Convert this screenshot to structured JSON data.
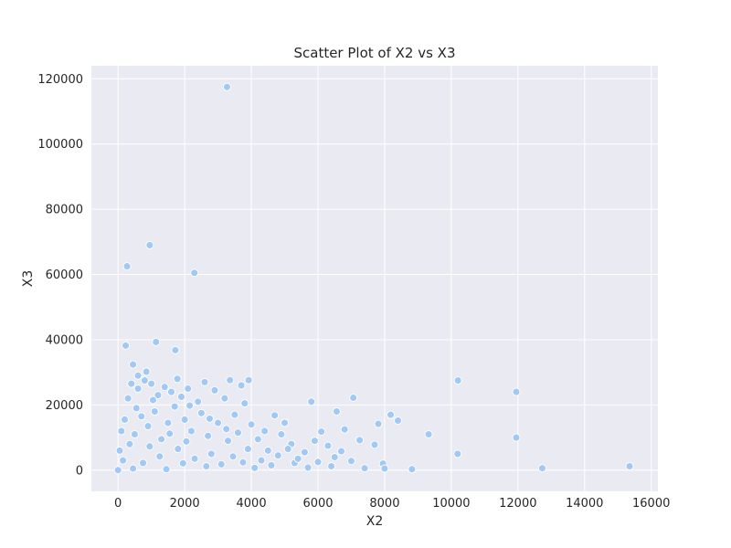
{
  "chart_data": {
    "type": "scatter",
    "title": "Scatter Plot of X2 vs X3",
    "xlabel": "X2",
    "ylabel": "X3",
    "xlim": [
      -800,
      16200
    ],
    "ylim": [
      -6500,
      124000
    ],
    "xticks": [
      0,
      2000,
      4000,
      6000,
      8000,
      10000,
      12000,
      14000,
      16000
    ],
    "yticks": [
      0,
      20000,
      40000,
      60000,
      80000,
      100000,
      120000
    ],
    "grid": true,
    "background_color": "#eaeaf2",
    "marker_color": "#a1c9f4",
    "points": [
      [
        3270,
        117500
      ],
      [
        950,
        69000
      ],
      [
        270,
        62500
      ],
      [
        2290,
        60500
      ],
      [
        1140,
        39300
      ],
      [
        230,
        38200
      ],
      [
        1720,
        36800
      ],
      [
        450,
        32400
      ],
      [
        850,
        30200
      ],
      [
        600,
        29000
      ],
      [
        1780,
        28000
      ],
      [
        3360,
        27600
      ],
      [
        3920,
        27600
      ],
      [
        10200,
        27500
      ],
      [
        3700,
        26000
      ],
      [
        7060,
        22200
      ],
      [
        11950,
        24000
      ],
      [
        5800,
        21000
      ],
      [
        6560,
        18000
      ],
      [
        8180,
        17000
      ],
      [
        8400,
        15200
      ],
      [
        7810,
        14200
      ],
      [
        9320,
        11000
      ],
      [
        11950,
        10000
      ],
      [
        10190,
        5000
      ],
      [
        12730,
        600
      ],
      [
        15350,
        1200
      ],
      [
        8820,
        300
      ],
      [
        7950,
        2000
      ],
      [
        7700,
        7800
      ],
      [
        7250,
        9200
      ],
      [
        6800,
        12500
      ],
      [
        6100,
        11800
      ],
      [
        6300,
        7500
      ],
      [
        6500,
        4000
      ],
      [
        5900,
        9000
      ],
      [
        5600,
        5500
      ],
      [
        5300,
        2200
      ],
      [
        4900,
        11000
      ],
      [
        4700,
        16800
      ],
      [
        4500,
        6000
      ],
      [
        5000,
        14500
      ],
      [
        5200,
        8000
      ],
      [
        4200,
        9500
      ],
      [
        4000,
        14000
      ],
      [
        3800,
        20500
      ],
      [
        3500,
        17000
      ],
      [
        3200,
        22000
      ],
      [
        2900,
        24500
      ],
      [
        2600,
        27000
      ],
      [
        2400,
        21000
      ],
      [
        2100,
        25000
      ],
      [
        1900,
        22500
      ],
      [
        1600,
        24000
      ],
      [
        1400,
        25500
      ],
      [
        1200,
        23000
      ],
      [
        1000,
        26500
      ],
      [
        800,
        27500
      ],
      [
        600,
        25000
      ],
      [
        400,
        26500
      ],
      [
        300,
        22000
      ],
      [
        200,
        15500
      ],
      [
        100,
        12000
      ],
      [
        50,
        6000
      ],
      [
        0,
        0
      ],
      [
        150,
        3000
      ],
      [
        350,
        8000
      ],
      [
        500,
        11000
      ],
      [
        700,
        16500
      ],
      [
        900,
        13500
      ],
      [
        1100,
        18000
      ],
      [
        1300,
        9500
      ],
      [
        1500,
        14500
      ],
      [
        1700,
        19500
      ],
      [
        2000,
        15500
      ],
      [
        2200,
        12000
      ],
      [
        2500,
        17500
      ],
      [
        2700,
        10500
      ],
      [
        3000,
        14500
      ],
      [
        3300,
        9000
      ],
      [
        3600,
        11500
      ],
      [
        3900,
        6500
      ],
      [
        4300,
        3000
      ],
      [
        4600,
        1500
      ],
      [
        4800,
        4500
      ],
      [
        5100,
        6500
      ],
      [
        5400,
        3500
      ],
      [
        5700,
        800
      ],
      [
        6000,
        2500
      ],
      [
        6400,
        1200
      ],
      [
        6700,
        5800
      ],
      [
        7000,
        2800
      ],
      [
        7400,
        600
      ],
      [
        8000,
        500
      ],
      [
        2800,
        5000
      ],
      [
        2300,
        3500
      ],
      [
        1800,
        6500
      ],
      [
        1250,
        4200
      ],
      [
        750,
        2200
      ],
      [
        450,
        500
      ],
      [
        3100,
        1800
      ],
      [
        3450,
        4200
      ],
      [
        2050,
        8800
      ],
      [
        1550,
        11200
      ],
      [
        950,
        7300
      ],
      [
        550,
        19000
      ],
      [
        1050,
        21500
      ],
      [
        2150,
        19800
      ],
      [
        2750,
        15800
      ],
      [
        3250,
        12600
      ],
      [
        1450,
        300
      ],
      [
        2650,
        1200
      ],
      [
        4100,
        700
      ],
      [
        4400,
        12000
      ],
      [
        3750,
        2400
      ],
      [
        1950,
        2100
      ]
    ]
  }
}
